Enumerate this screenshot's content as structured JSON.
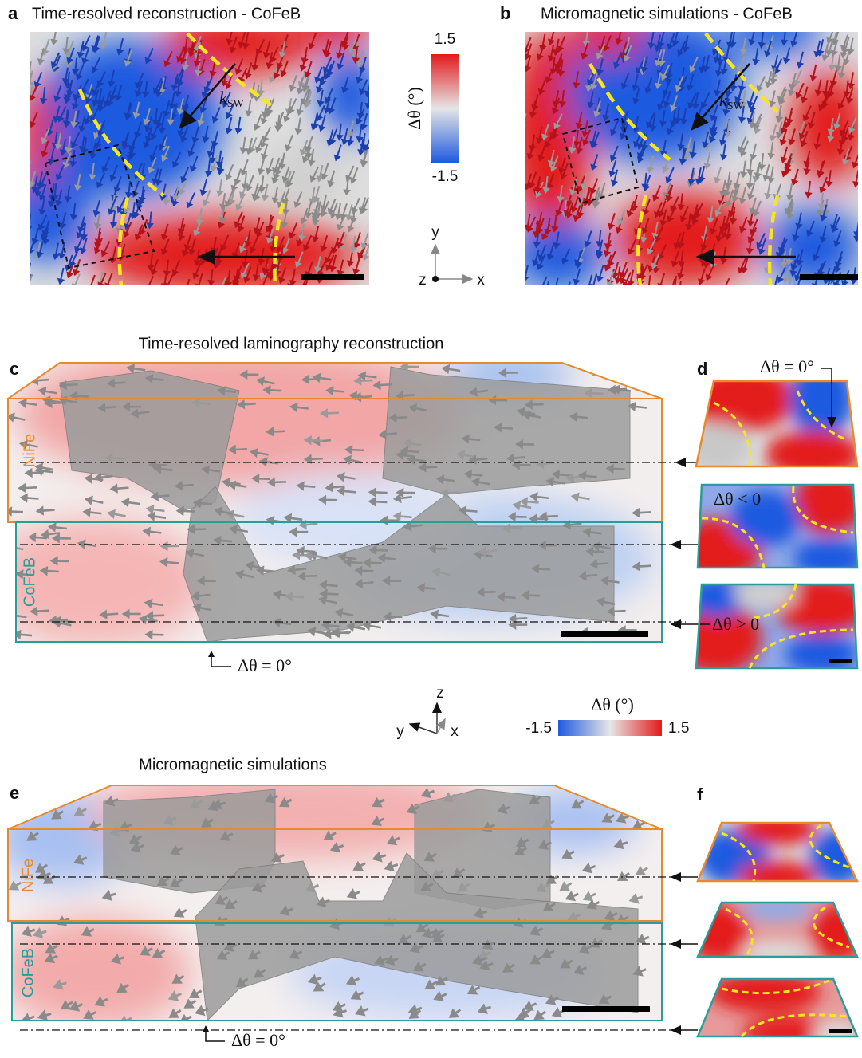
{
  "panels": {
    "a": {
      "label": "a",
      "title": "Time-resolved reconstruction - CoFeB",
      "k": "k",
      "k_sub": "SW"
    },
    "b": {
      "label": "b",
      "title": "Micromagnetic simulations - CoFeB",
      "k": "k",
      "k_sub": "SW"
    },
    "colorbar_top": {
      "title": "Δθ (°)",
      "max": "1.5",
      "min": "-1.5"
    },
    "axes_top": {
      "y": "y",
      "z": "z",
      "x": "x"
    },
    "c": {
      "label": "c",
      "title": "Time-resolved laminography reconstruction",
      "layer_top": "NiFe",
      "layer_bottom": "CoFeB",
      "annotation": "Δθ = 0°"
    },
    "d": {
      "label": "d",
      "annotation_top": "Δθ = 0°",
      "annotation_middle": "Δθ < 0",
      "annotation_bottom": "Δθ > 0"
    },
    "axes_middle": {
      "z": "z",
      "y": "y",
      "x": "x"
    },
    "colorbar_middle": {
      "title": "Δθ (°)",
      "min": "-1.5",
      "max": "1.5"
    },
    "e": {
      "label": "e",
      "title": "Micromagnetic simulations",
      "layer_top": "NiFe",
      "layer_bottom": "CoFeB",
      "annotation": "Δθ = 0°"
    },
    "f": {
      "label": "f"
    }
  }
}
